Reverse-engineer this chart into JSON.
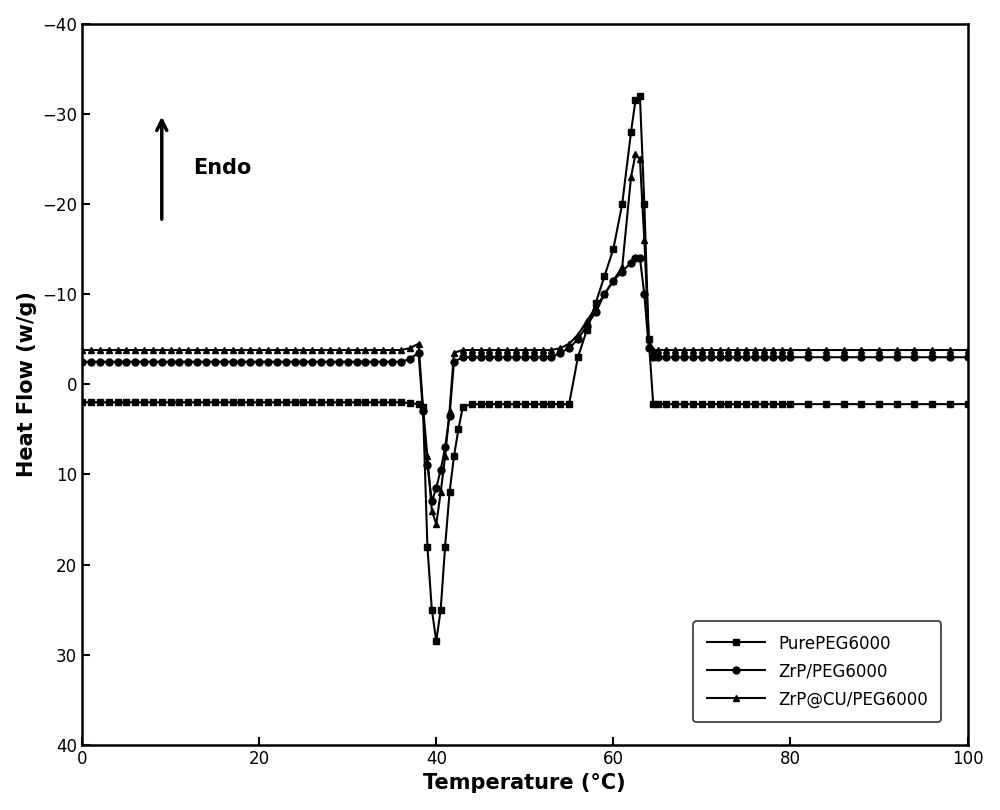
{
  "xlim": [
    0,
    100
  ],
  "ylim": [
    40,
    -40
  ],
  "xticks": [
    0,
    20,
    40,
    60,
    80,
    100
  ],
  "yticks": [
    -40,
    -30,
    -20,
    -10,
    0,
    10,
    20,
    30,
    40
  ],
  "xlabel": "Temperature (°C)",
  "ylabel": "Heat Flow (w/g)",
  "background_color": "#ffffff",
  "endo_text": "Endo",
  "legend_labels": [
    "PurePEG6000",
    "ZrP/PEG6000",
    "ZrP@CU/PEG6000"
  ],
  "series": {
    "PurePEG6000": {
      "color": "#000000",
      "marker": "s",
      "markersize": 5,
      "linewidth": 1.5,
      "data": [
        [
          0,
          2.0
        ],
        [
          1,
          2.0
        ],
        [
          2,
          2.0
        ],
        [
          3,
          2.0
        ],
        [
          4,
          2.0
        ],
        [
          5,
          2.0
        ],
        [
          6,
          2.0
        ],
        [
          7,
          2.0
        ],
        [
          8,
          2.0
        ],
        [
          9,
          2.0
        ],
        [
          10,
          2.0
        ],
        [
          11,
          2.0
        ],
        [
          12,
          2.0
        ],
        [
          13,
          2.0
        ],
        [
          14,
          2.0
        ],
        [
          15,
          2.0
        ],
        [
          16,
          2.0
        ],
        [
          17,
          2.0
        ],
        [
          18,
          2.0
        ],
        [
          19,
          2.0
        ],
        [
          20,
          2.0
        ],
        [
          21,
          2.0
        ],
        [
          22,
          2.0
        ],
        [
          23,
          2.0
        ],
        [
          24,
          2.0
        ],
        [
          25,
          2.0
        ],
        [
          26,
          2.0
        ],
        [
          27,
          2.0
        ],
        [
          28,
          2.0
        ],
        [
          29,
          2.0
        ],
        [
          30,
          2.0
        ],
        [
          31,
          2.0
        ],
        [
          32,
          2.0
        ],
        [
          33,
          2.0
        ],
        [
          34,
          2.0
        ],
        [
          35,
          2.0
        ],
        [
          36,
          2.0
        ],
        [
          37,
          2.1
        ],
        [
          38,
          2.2
        ],
        [
          38.5,
          2.5
        ],
        [
          39,
          18.0
        ],
        [
          39.5,
          25.0
        ],
        [
          40,
          28.5
        ],
        [
          40.5,
          25.0
        ],
        [
          41,
          18.0
        ],
        [
          41.5,
          12.0
        ],
        [
          42,
          8.0
        ],
        [
          42.5,
          5.0
        ],
        [
          43,
          2.5
        ],
        [
          44,
          2.2
        ],
        [
          45,
          2.2
        ],
        [
          46,
          2.2
        ],
        [
          47,
          2.2
        ],
        [
          48,
          2.2
        ],
        [
          49,
          2.2
        ],
        [
          50,
          2.2
        ],
        [
          51,
          2.2
        ],
        [
          52,
          2.2
        ],
        [
          53,
          2.2
        ],
        [
          54,
          2.2
        ],
        [
          55,
          2.2
        ],
        [
          56,
          -3.0
        ],
        [
          57,
          -6.0
        ],
        [
          58,
          -9.0
        ],
        [
          59,
          -12.0
        ],
        [
          60,
          -15.0
        ],
        [
          61,
          -20.0
        ],
        [
          62,
          -28.0
        ],
        [
          62.5,
          -31.5
        ],
        [
          63,
          -32.0
        ],
        [
          63.5,
          -20.0
        ],
        [
          64,
          -5.0
        ],
        [
          64.5,
          2.2
        ],
        [
          65,
          2.2
        ],
        [
          66,
          2.2
        ],
        [
          67,
          2.2
        ],
        [
          68,
          2.2
        ],
        [
          69,
          2.2
        ],
        [
          70,
          2.2
        ],
        [
          71,
          2.2
        ],
        [
          72,
          2.2
        ],
        [
          73,
          2.2
        ],
        [
          74,
          2.2
        ],
        [
          75,
          2.2
        ],
        [
          76,
          2.2
        ],
        [
          77,
          2.2
        ],
        [
          78,
          2.2
        ],
        [
          79,
          2.2
        ],
        [
          80,
          2.2
        ],
        [
          82,
          2.2
        ],
        [
          84,
          2.2
        ],
        [
          86,
          2.2
        ],
        [
          88,
          2.2
        ],
        [
          90,
          2.2
        ],
        [
          92,
          2.2
        ],
        [
          94,
          2.2
        ],
        [
          96,
          2.2
        ],
        [
          98,
          2.2
        ],
        [
          100,
          2.2
        ]
      ]
    },
    "ZrP_PEG6000": {
      "color": "#000000",
      "marker": "o",
      "markersize": 5,
      "linewidth": 1.5,
      "data": [
        [
          0,
          -2.5
        ],
        [
          1,
          -2.5
        ],
        [
          2,
          -2.5
        ],
        [
          3,
          -2.5
        ],
        [
          4,
          -2.5
        ],
        [
          5,
          -2.5
        ],
        [
          6,
          -2.5
        ],
        [
          7,
          -2.5
        ],
        [
          8,
          -2.5
        ],
        [
          9,
          -2.5
        ],
        [
          10,
          -2.5
        ],
        [
          11,
          -2.5
        ],
        [
          12,
          -2.5
        ],
        [
          13,
          -2.5
        ],
        [
          14,
          -2.5
        ],
        [
          15,
          -2.5
        ],
        [
          16,
          -2.5
        ],
        [
          17,
          -2.5
        ],
        [
          18,
          -2.5
        ],
        [
          19,
          -2.5
        ],
        [
          20,
          -2.5
        ],
        [
          21,
          -2.5
        ],
        [
          22,
          -2.5
        ],
        [
          23,
          -2.5
        ],
        [
          24,
          -2.5
        ],
        [
          25,
          -2.5
        ],
        [
          26,
          -2.5
        ],
        [
          27,
          -2.5
        ],
        [
          28,
          -2.5
        ],
        [
          29,
          -2.5
        ],
        [
          30,
          -2.5
        ],
        [
          31,
          -2.5
        ],
        [
          32,
          -2.5
        ],
        [
          33,
          -2.5
        ],
        [
          34,
          -2.5
        ],
        [
          35,
          -2.5
        ],
        [
          36,
          -2.5
        ],
        [
          37,
          -2.8
        ],
        [
          38,
          -3.5
        ],
        [
          38.5,
          3.0
        ],
        [
          39,
          9.0
        ],
        [
          39.5,
          13.0
        ],
        [
          40,
          11.5
        ],
        [
          40.5,
          9.5
        ],
        [
          41,
          7.0
        ],
        [
          41.5,
          3.5
        ],
        [
          42,
          -2.5
        ],
        [
          43,
          -3.0
        ],
        [
          44,
          -3.0
        ],
        [
          45,
          -3.0
        ],
        [
          46,
          -3.0
        ],
        [
          47,
          -3.0
        ],
        [
          48,
          -3.0
        ],
        [
          49,
          -3.0
        ],
        [
          50,
          -3.0
        ],
        [
          51,
          -3.0
        ],
        [
          52,
          -3.0
        ],
        [
          53,
          -3.0
        ],
        [
          54,
          -3.5
        ],
        [
          55,
          -4.0
        ],
        [
          56,
          -5.0
        ],
        [
          57,
          -6.5
        ],
        [
          58,
          -8.0
        ],
        [
          59,
          -10.0
        ],
        [
          60,
          -11.5
        ],
        [
          61,
          -12.5
        ],
        [
          62,
          -13.5
        ],
        [
          62.5,
          -14.0
        ],
        [
          63,
          -14.0
        ],
        [
          63.5,
          -10.0
        ],
        [
          64,
          -4.0
        ],
        [
          64.5,
          -3.0
        ],
        [
          65,
          -3.0
        ],
        [
          66,
          -3.0
        ],
        [
          67,
          -3.0
        ],
        [
          68,
          -3.0
        ],
        [
          69,
          -3.0
        ],
        [
          70,
          -3.0
        ],
        [
          71,
          -3.0
        ],
        [
          72,
          -3.0
        ],
        [
          73,
          -3.0
        ],
        [
          74,
          -3.0
        ],
        [
          75,
          -3.0
        ],
        [
          76,
          -3.0
        ],
        [
          77,
          -3.0
        ],
        [
          78,
          -3.0
        ],
        [
          79,
          -3.0
        ],
        [
          80,
          -3.0
        ],
        [
          82,
          -3.0
        ],
        [
          84,
          -3.0
        ],
        [
          86,
          -3.0
        ],
        [
          88,
          -3.0
        ],
        [
          90,
          -3.0
        ],
        [
          92,
          -3.0
        ],
        [
          94,
          -3.0
        ],
        [
          96,
          -3.0
        ],
        [
          98,
          -3.0
        ],
        [
          100,
          -3.0
        ]
      ]
    },
    "ZrP_CU_PEG6000": {
      "color": "#000000",
      "marker": "^",
      "markersize": 5,
      "linewidth": 1.5,
      "data": [
        [
          0,
          -3.8
        ],
        [
          1,
          -3.8
        ],
        [
          2,
          -3.8
        ],
        [
          3,
          -3.8
        ],
        [
          4,
          -3.8
        ],
        [
          5,
          -3.8
        ],
        [
          6,
          -3.8
        ],
        [
          7,
          -3.8
        ],
        [
          8,
          -3.8
        ],
        [
          9,
          -3.8
        ],
        [
          10,
          -3.8
        ],
        [
          11,
          -3.8
        ],
        [
          12,
          -3.8
        ],
        [
          13,
          -3.8
        ],
        [
          14,
          -3.8
        ],
        [
          15,
          -3.8
        ],
        [
          16,
          -3.8
        ],
        [
          17,
          -3.8
        ],
        [
          18,
          -3.8
        ],
        [
          19,
          -3.8
        ],
        [
          20,
          -3.8
        ],
        [
          21,
          -3.8
        ],
        [
          22,
          -3.8
        ],
        [
          23,
          -3.8
        ],
        [
          24,
          -3.8
        ],
        [
          25,
          -3.8
        ],
        [
          26,
          -3.8
        ],
        [
          27,
          -3.8
        ],
        [
          28,
          -3.8
        ],
        [
          29,
          -3.8
        ],
        [
          30,
          -3.8
        ],
        [
          31,
          -3.8
        ],
        [
          32,
          -3.8
        ],
        [
          33,
          -3.8
        ],
        [
          34,
          -3.8
        ],
        [
          35,
          -3.8
        ],
        [
          36,
          -3.8
        ],
        [
          37,
          -4.0
        ],
        [
          38,
          -4.5
        ],
        [
          38.5,
          2.5
        ],
        [
          39,
          8.0
        ],
        [
          39.5,
          14.0
        ],
        [
          40,
          15.5
        ],
        [
          40.5,
          12.0
        ],
        [
          41,
          8.0
        ],
        [
          41.5,
          3.0
        ],
        [
          42,
          -3.5
        ],
        [
          43,
          -3.8
        ],
        [
          44,
          -3.8
        ],
        [
          45,
          -3.8
        ],
        [
          46,
          -3.8
        ],
        [
          47,
          -3.8
        ],
        [
          48,
          -3.8
        ],
        [
          49,
          -3.8
        ],
        [
          50,
          -3.8
        ],
        [
          51,
          -3.8
        ],
        [
          52,
          -3.8
        ],
        [
          53,
          -3.8
        ],
        [
          54,
          -4.0
        ],
        [
          55,
          -4.5
        ],
        [
          56,
          -5.5
        ],
        [
          57,
          -7.0
        ],
        [
          58,
          -8.5
        ],
        [
          59,
          -10.0
        ],
        [
          60,
          -11.5
        ],
        [
          61,
          -13.0
        ],
        [
          62,
          -23.0
        ],
        [
          62.5,
          -25.5
        ],
        [
          63,
          -25.0
        ],
        [
          63.5,
          -16.0
        ],
        [
          64,
          -5.0
        ],
        [
          64.5,
          -3.8
        ],
        [
          65,
          -3.8
        ],
        [
          66,
          -3.8
        ],
        [
          67,
          -3.8
        ],
        [
          68,
          -3.8
        ],
        [
          69,
          -3.8
        ],
        [
          70,
          -3.8
        ],
        [
          71,
          -3.8
        ],
        [
          72,
          -3.8
        ],
        [
          73,
          -3.8
        ],
        [
          74,
          -3.8
        ],
        [
          75,
          -3.8
        ],
        [
          76,
          -3.8
        ],
        [
          77,
          -3.8
        ],
        [
          78,
          -3.8
        ],
        [
          79,
          -3.8
        ],
        [
          80,
          -3.8
        ],
        [
          82,
          -3.8
        ],
        [
          84,
          -3.8
        ],
        [
          86,
          -3.8
        ],
        [
          88,
          -3.8
        ],
        [
          90,
          -3.8
        ],
        [
          92,
          -3.8
        ],
        [
          94,
          -3.8
        ],
        [
          96,
          -3.8
        ],
        [
          98,
          -3.8
        ],
        [
          100,
          -3.8
        ]
      ]
    }
  }
}
